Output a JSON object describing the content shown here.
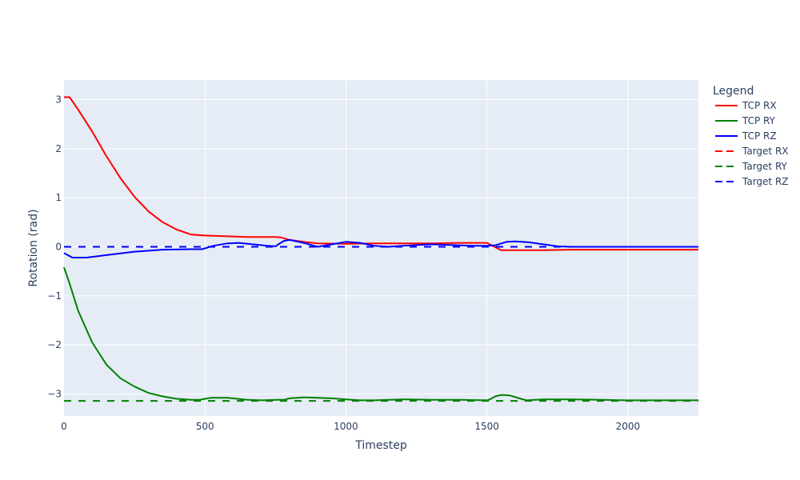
{
  "chart_data": {
    "type": "line",
    "title": "",
    "xlabel": "Timestep",
    "ylabel": "Rotation (rad)",
    "xlim": [
      0,
      2250
    ],
    "ylim": [
      -3.45,
      3.4
    ],
    "x_ticks": [
      0,
      500,
      1000,
      1500,
      2000
    ],
    "y_ticks": [
      3,
      2,
      1,
      0,
      -1,
      -2,
      -3
    ],
    "y_tick_labels": [
      "3",
      "2",
      "1",
      "0",
      "−1",
      "−2",
      "−3"
    ],
    "grid": true,
    "legend": {
      "title": "Legend",
      "placement": "right"
    },
    "series": [
      {
        "name": "TCP RX",
        "color": "#ff0000",
        "dash": "solid",
        "points": [
          [
            0,
            3.05
          ],
          [
            20,
            3.05
          ],
          [
            50,
            2.8
          ],
          [
            100,
            2.35
          ],
          [
            150,
            1.85
          ],
          [
            200,
            1.4
          ],
          [
            250,
            1.02
          ],
          [
            300,
            0.72
          ],
          [
            350,
            0.5
          ],
          [
            400,
            0.35
          ],
          [
            450,
            0.25
          ],
          [
            500,
            0.23
          ],
          [
            550,
            0.22
          ],
          [
            600,
            0.21
          ],
          [
            650,
            0.2
          ],
          [
            700,
            0.2
          ],
          [
            750,
            0.2
          ],
          [
            770,
            0.19
          ],
          [
            800,
            0.14
          ],
          [
            850,
            0.1
          ],
          [
            900,
            0.07
          ],
          [
            1000,
            0.06
          ],
          [
            1100,
            0.07
          ],
          [
            1200,
            0.07
          ],
          [
            1300,
            0.07
          ],
          [
            1400,
            0.08
          ],
          [
            1500,
            0.08
          ],
          [
            1520,
            0.02
          ],
          [
            1550,
            -0.07
          ],
          [
            1700,
            -0.07
          ],
          [
            1800,
            -0.06
          ],
          [
            2000,
            -0.06
          ],
          [
            2250,
            -0.06
          ]
        ]
      },
      {
        "name": "TCP RY",
        "color": "#008000",
        "dash": "solid",
        "points": [
          [
            0,
            -0.42
          ],
          [
            20,
            -0.75
          ],
          [
            50,
            -1.3
          ],
          [
            100,
            -1.95
          ],
          [
            150,
            -2.4
          ],
          [
            200,
            -2.68
          ],
          [
            250,
            -2.85
          ],
          [
            300,
            -2.98
          ],
          [
            350,
            -3.05
          ],
          [
            400,
            -3.1
          ],
          [
            450,
            -3.12
          ],
          [
            480,
            -3.12
          ],
          [
            520,
            -3.08
          ],
          [
            580,
            -3.08
          ],
          [
            650,
            -3.12
          ],
          [
            700,
            -3.13
          ],
          [
            760,
            -3.12
          ],
          [
            780,
            -3.12
          ],
          [
            800,
            -3.09
          ],
          [
            850,
            -3.07
          ],
          [
            900,
            -3.08
          ],
          [
            950,
            -3.09
          ],
          [
            1000,
            -3.11
          ],
          [
            1050,
            -3.13
          ],
          [
            1100,
            -3.13
          ],
          [
            1200,
            -3.11
          ],
          [
            1300,
            -3.12
          ],
          [
            1400,
            -3.12
          ],
          [
            1500,
            -3.13
          ],
          [
            1510,
            -3.11
          ],
          [
            1530,
            -3.05
          ],
          [
            1550,
            -3.02
          ],
          [
            1580,
            -3.03
          ],
          [
            1620,
            -3.1
          ],
          [
            1640,
            -3.13
          ],
          [
            1700,
            -3.11
          ],
          [
            1800,
            -3.11
          ],
          [
            1900,
            -3.12
          ],
          [
            2000,
            -3.13
          ],
          [
            2100,
            -3.13
          ],
          [
            2250,
            -3.13
          ]
        ]
      },
      {
        "name": "TCP RZ",
        "color": "#0000ff",
        "dash": "solid",
        "points": [
          [
            0,
            -0.13
          ],
          [
            30,
            -0.22
          ],
          [
            80,
            -0.22
          ],
          [
            150,
            -0.17
          ],
          [
            250,
            -0.1
          ],
          [
            350,
            -0.06
          ],
          [
            450,
            -0.05
          ],
          [
            490,
            -0.05
          ],
          [
            530,
            0.02
          ],
          [
            580,
            0.07
          ],
          [
            620,
            0.08
          ],
          [
            670,
            0.05
          ],
          [
            720,
            0.02
          ],
          [
            750,
            0.01
          ],
          [
            760,
            0.05
          ],
          [
            780,
            0.12
          ],
          [
            800,
            0.14
          ],
          [
            850,
            0.08
          ],
          [
            900,
            0.0
          ],
          [
            950,
            0.05
          ],
          [
            1000,
            0.1
          ],
          [
            1050,
            0.08
          ],
          [
            1100,
            0.02
          ],
          [
            1150,
            0.0
          ],
          [
            1200,
            0.02
          ],
          [
            1300,
            0.05
          ],
          [
            1400,
            0.03
          ],
          [
            1450,
            0.02
          ],
          [
            1500,
            0.02
          ],
          [
            1530,
            0.03
          ],
          [
            1570,
            0.1
          ],
          [
            1600,
            0.11
          ],
          [
            1650,
            0.09
          ],
          [
            1700,
            0.05
          ],
          [
            1750,
            0.01
          ],
          [
            1800,
            0.0
          ],
          [
            2000,
            0.0
          ],
          [
            2250,
            0.0
          ]
        ]
      },
      {
        "name": "Target RX",
        "color": "#ff0000",
        "dash": "dash",
        "points": [
          [
            0,
            0
          ],
          [
            2250,
            0
          ]
        ]
      },
      {
        "name": "Target RY",
        "color": "#008000",
        "dash": "dash",
        "points": [
          [
            0,
            -3.14159
          ],
          [
            2250,
            -3.14159
          ]
        ]
      },
      {
        "name": "Target RZ",
        "color": "#0000ff",
        "dash": "dash",
        "points": [
          [
            0,
            0
          ],
          [
            2250,
            0
          ]
        ]
      }
    ]
  }
}
